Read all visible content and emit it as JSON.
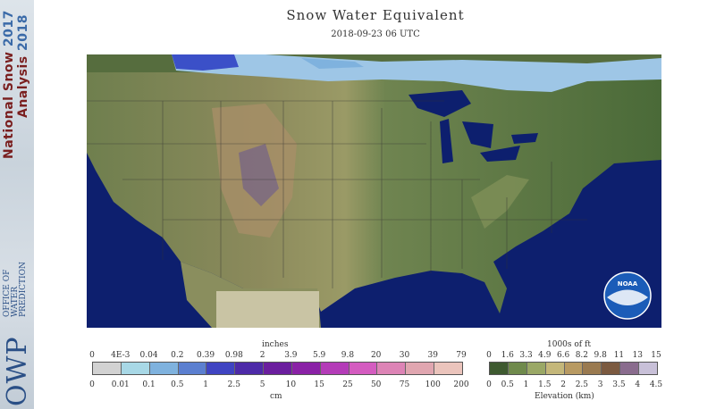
{
  "sidebar": {
    "title": "National Snow",
    "subtitle": "Analysis",
    "year_a": "2017",
    "year_b": "2018",
    "org_logo": "OWP",
    "org_lines": [
      "OFFICE OF",
      "WATER",
      "PREDICTION"
    ]
  },
  "header": {
    "title": "Snow Water Equivalent",
    "timestamp": "2018-09-23 06 UTC"
  },
  "map": {
    "logo": "NOAA",
    "colors": {
      "ocean": "#0d1f6e",
      "lowland": "#4d6b3a",
      "midland": "#7d8f5c",
      "highland": "#a99870",
      "snow_light": "#9ec6e6",
      "snow_deep": "#3b50c8"
    }
  },
  "swe_legend": {
    "top_unit": "inches",
    "top_ticks": [
      "0",
      "4E-3",
      "0.04",
      "0.2",
      "0.39",
      "0.98",
      "2",
      "3.9",
      "5.9",
      "9.8",
      "20",
      "30",
      "39",
      "79"
    ],
    "bottom_ticks": [
      "0",
      "0.01",
      "0.1",
      "0.5",
      "1",
      "2.5",
      "5",
      "10",
      "15",
      "25",
      "50",
      "75",
      "100",
      "200"
    ],
    "bottom_unit": "cm",
    "colors": [
      "#d2d2d2",
      "#a8d8e6",
      "#7fb2de",
      "#5b7fd0",
      "#3f44c2",
      "#4d2aa8",
      "#6b1e9e",
      "#8a21a6",
      "#b43cb8",
      "#d45cc0",
      "#dd84b6",
      "#e0a6b0",
      "#ebc4bc"
    ]
  },
  "elev_legend": {
    "top_unit": "1000s of ft",
    "top_ticks": [
      "0",
      "1.6",
      "3.3",
      "4.9",
      "6.6",
      "8.2",
      "9.8",
      "11",
      "13",
      "15"
    ],
    "bottom_ticks": [
      "0",
      "0.5",
      "1",
      "1.5",
      "2",
      "2.5",
      "3",
      "3.5",
      "4",
      "4.5"
    ],
    "bottom_unit": "Elevation (km)",
    "colors": [
      "#3e5a30",
      "#6f8a4c",
      "#9aa866",
      "#c4b77a",
      "#b89a62",
      "#9a7a50",
      "#7b5a40",
      "#8a6c8e",
      "#c8c0d8"
    ]
  }
}
